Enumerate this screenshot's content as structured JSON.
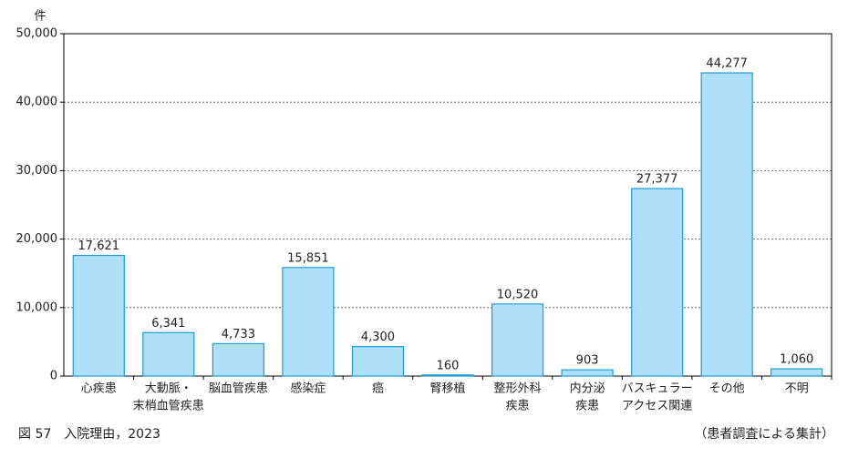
{
  "chart_data": {
    "type": "bar",
    "y_unit": "件",
    "categories": [
      [
        "心疾患"
      ],
      [
        "大動脈・",
        "末梢血管疾患"
      ],
      [
        "脳血管疾患"
      ],
      [
        "感染症"
      ],
      [
        "癌"
      ],
      [
        "腎移植"
      ],
      [
        "整形外科",
        "疾患"
      ],
      [
        "内分泌",
        "疾患"
      ],
      [
        "バスキュラー",
        "アクセス関連"
      ],
      [
        "その他"
      ],
      [
        "不明"
      ]
    ],
    "values": [
      17621,
      6341,
      4733,
      15851,
      4300,
      160,
      10520,
      903,
      27377,
      44277,
      1060
    ],
    "value_labels": [
      "17,621",
      "6,341",
      "4,733",
      "15,851",
      "4,300",
      "160",
      "10,520",
      "903",
      "27,377",
      "44,277",
      "1,060"
    ],
    "color": "#aee1f9",
    "edge_color": "#1e9ad6",
    "ylim": [
      0,
      50000
    ],
    "yticks": [
      0,
      {
        "value": 10000,
        "label": "10,000"
      },
      {
        "value": 20000,
        "label": "20,000"
      },
      {
        "value": 30000,
        "label": "30,000"
      },
      {
        "value": 40000,
        "label": "40,000"
      },
      {
        "value": 50000,
        "label": "50,000"
      }
    ],
    "grid": true,
    "caption": "図 57　入院理由，2023",
    "note": "（患者調査による集計）"
  }
}
